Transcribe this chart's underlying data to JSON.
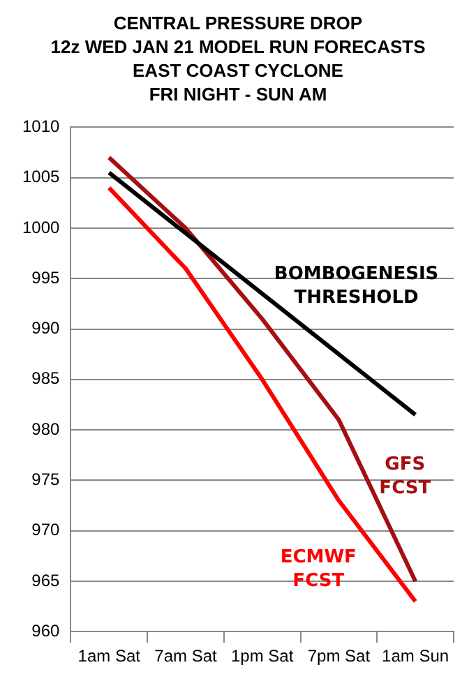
{
  "chart_data": {
    "type": "line",
    "title": "CENTRAL PRESSURE DROP\n12z WED JAN 21 MODEL RUN FORECASTS\nEAST COAST CYCLONE\nFRI NIGHT - SUN AM",
    "categories": [
      "1am Sat",
      "7am Sat",
      "1pm Sat",
      "7pm Sat",
      "1am Sun"
    ],
    "series": [
      {
        "name": "BOMBOGENESIS THRESHOLD",
        "color": "#000000",
        "values": [
          1005.5,
          999.5,
          993.5,
          987.5,
          981.5
        ]
      },
      {
        "name": "GFS FCST",
        "color": "#a50f10",
        "values": [
          1007,
          1000,
          991,
          981,
          965
        ]
      },
      {
        "name": "ECMWF FCST",
        "color": "#ff0000",
        "values": [
          1004,
          996,
          985,
          973,
          963
        ]
      }
    ],
    "ylim": [
      960,
      1010
    ],
    "yticks": [
      960,
      965,
      970,
      975,
      980,
      985,
      990,
      995,
      1000,
      1005,
      1010
    ],
    "grid": "y",
    "legend": false,
    "marker": "none",
    "line_style": "solid"
  }
}
